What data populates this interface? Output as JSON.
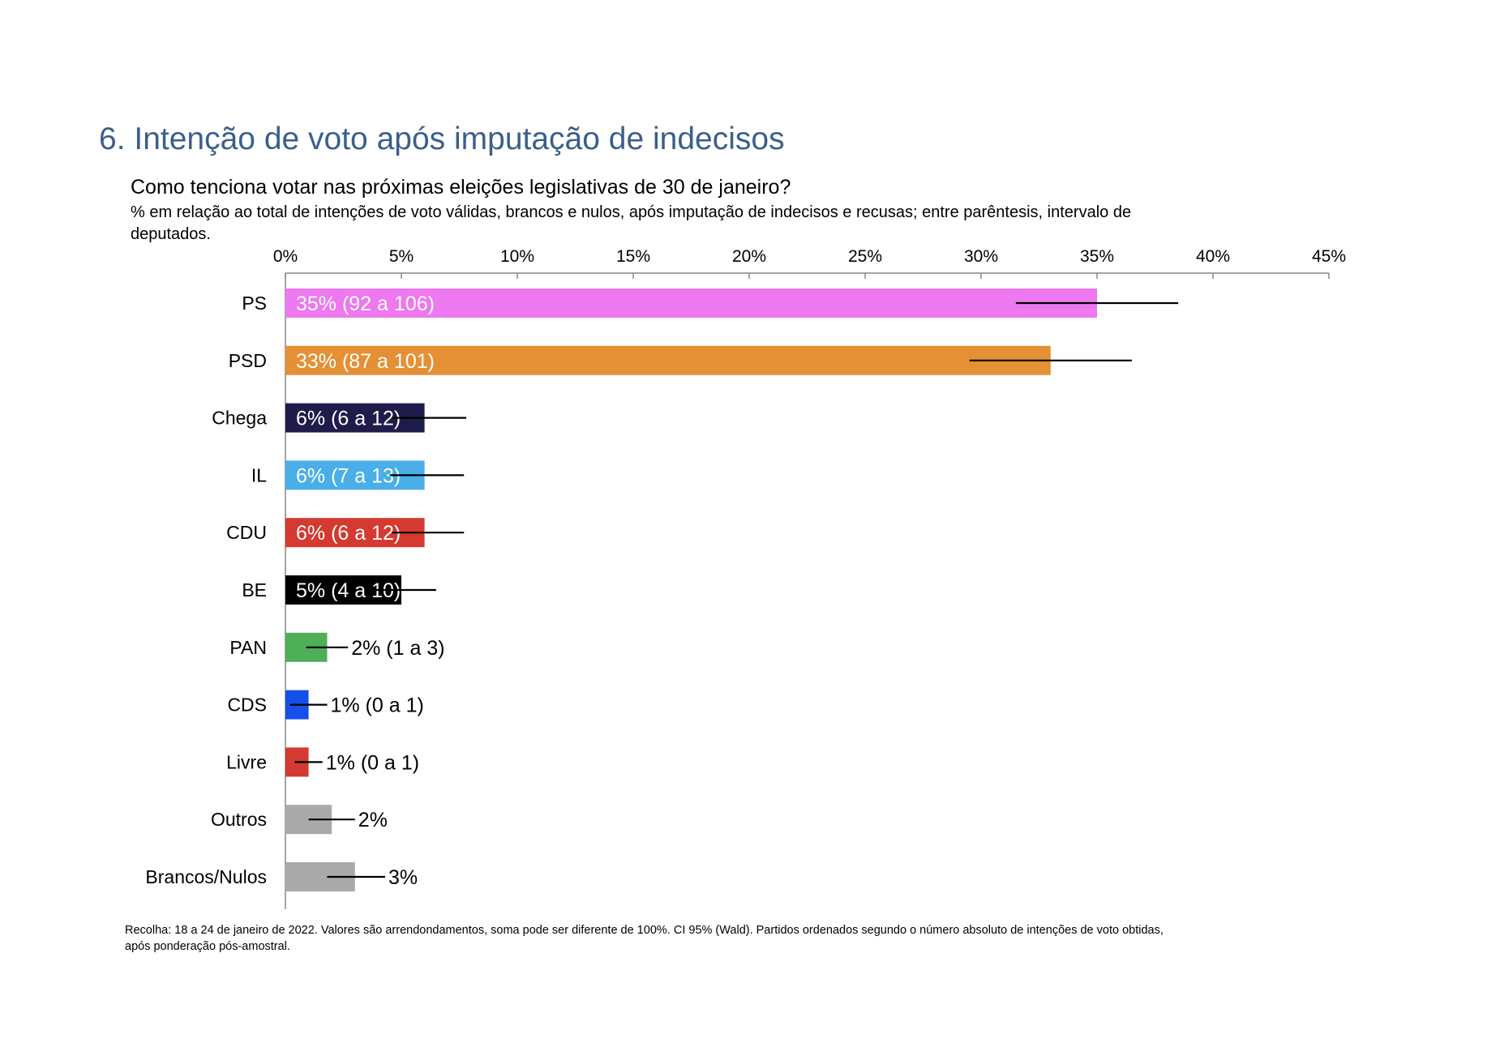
{
  "title": "6. Intenção de voto após imputação de indecisos",
  "footnote": "Recolha: 18 a 24 de janeiro de 2022.  Valores são arrendondamentos, soma pode ser diferente de 100%. CI 95% (Wald). Partidos ordenados segundo o número absoluto de intenções de voto obtidas, após ponderação pós-amostral.",
  "colors": {
    "title": "#3b5f8c",
    "axis": "#888888"
  },
  "chart_data": {
    "type": "bar",
    "orientation": "horizontal",
    "title": "Como tenciona votar nas próximas eleições legislativas de 30 de janeiro?",
    "subtitle": "% em relação ao total de intenções de voto válidas, brancos e nulos, após imputação de indecisos e recusas; entre parêntesis, intervalo de deputados.",
    "xlim": [
      0,
      45
    ],
    "x_ticks": [
      0,
      5,
      10,
      15,
      20,
      25,
      30,
      35,
      40,
      45
    ],
    "x_tick_labels": [
      "0%",
      "5%",
      "10%",
      "15%",
      "20%",
      "25%",
      "30%",
      "35%",
      "40%",
      "45%"
    ],
    "grid": false,
    "categories": [
      "PS",
      "PSD",
      "Chega",
      "IL",
      "CDU",
      "BE",
      "PAN",
      "CDS",
      "Livre",
      "Outros",
      "Brancos/Nulos"
    ],
    "values": [
      35,
      33,
      6,
      6,
      6,
      5,
      1.8,
      1,
      1,
      2,
      3
    ],
    "ci_low": [
      31.5,
      29.5,
      4.6,
      4.5,
      4.6,
      3.8,
      0.9,
      0.2,
      0.4,
      1.0,
      1.8
    ],
    "ci_high": [
      38.5,
      36.5,
      7.8,
      7.7,
      7.7,
      6.5,
      2.7,
      1.8,
      1.6,
      3.0,
      4.3
    ],
    "labels": [
      "35% (92 a 106)",
      "33% (87 a 101)",
      "6% (6 a 12)",
      "6% (7 a 13)",
      "6% (6 a 12)",
      "5% (4 a 10)",
      "2% (1 a 3)",
      "1% (0 a 1)",
      "1% (0 a 1)",
      "2%",
      "3%"
    ],
    "label_inside": [
      true,
      true,
      true,
      true,
      true,
      true,
      false,
      false,
      false,
      false,
      false
    ],
    "colors": [
      "#ee78f0",
      "#e59035",
      "#1e1c4a",
      "#4aaee8",
      "#d43a2f",
      "#000000",
      "#4fae58",
      "#1450e8",
      "#d43a2f",
      "#a9a9a9",
      "#a9a9a9"
    ]
  }
}
